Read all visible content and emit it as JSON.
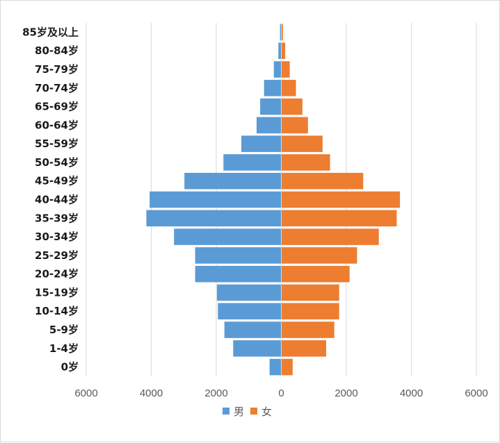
{
  "chart_data": {
    "type": "bar",
    "orientation": "horizontal-butterfly",
    "categories": [
      "0岁",
      "1-4岁",
      "5-9岁",
      "10-14岁",
      "15-19岁",
      "20-24岁",
      "25-29岁",
      "30-34岁",
      "35-39岁",
      "40-44岁",
      "45-49岁",
      "50-54岁",
      "55-59岁",
      "60-64岁",
      "65-69岁",
      "70-74岁",
      "75-79岁",
      "80-84岁",
      "85岁及以上"
    ],
    "series": [
      {
        "name": "男",
        "color": "#5b9bd5",
        "side": "left",
        "values": [
          360,
          1480,
          1750,
          1950,
          1980,
          2650,
          2650,
          3300,
          4150,
          4050,
          2980,
          1780,
          1230,
          760,
          650,
          530,
          230,
          90,
          40
        ]
      },
      {
        "name": "女",
        "color": "#ed7d31",
        "side": "right",
        "values": [
          350,
          1380,
          1630,
          1780,
          1780,
          2100,
          2330,
          3000,
          3550,
          3650,
          2520,
          1500,
          1270,
          820,
          650,
          450,
          260,
          120,
          50
        ]
      }
    ],
    "xlim": [
      -6000,
      6000
    ],
    "x_ticks": [
      "6000",
      "4000",
      "2000",
      "0",
      "2000",
      "4000",
      "6000"
    ],
    "grid": "vertical",
    "legend": "bottom"
  }
}
